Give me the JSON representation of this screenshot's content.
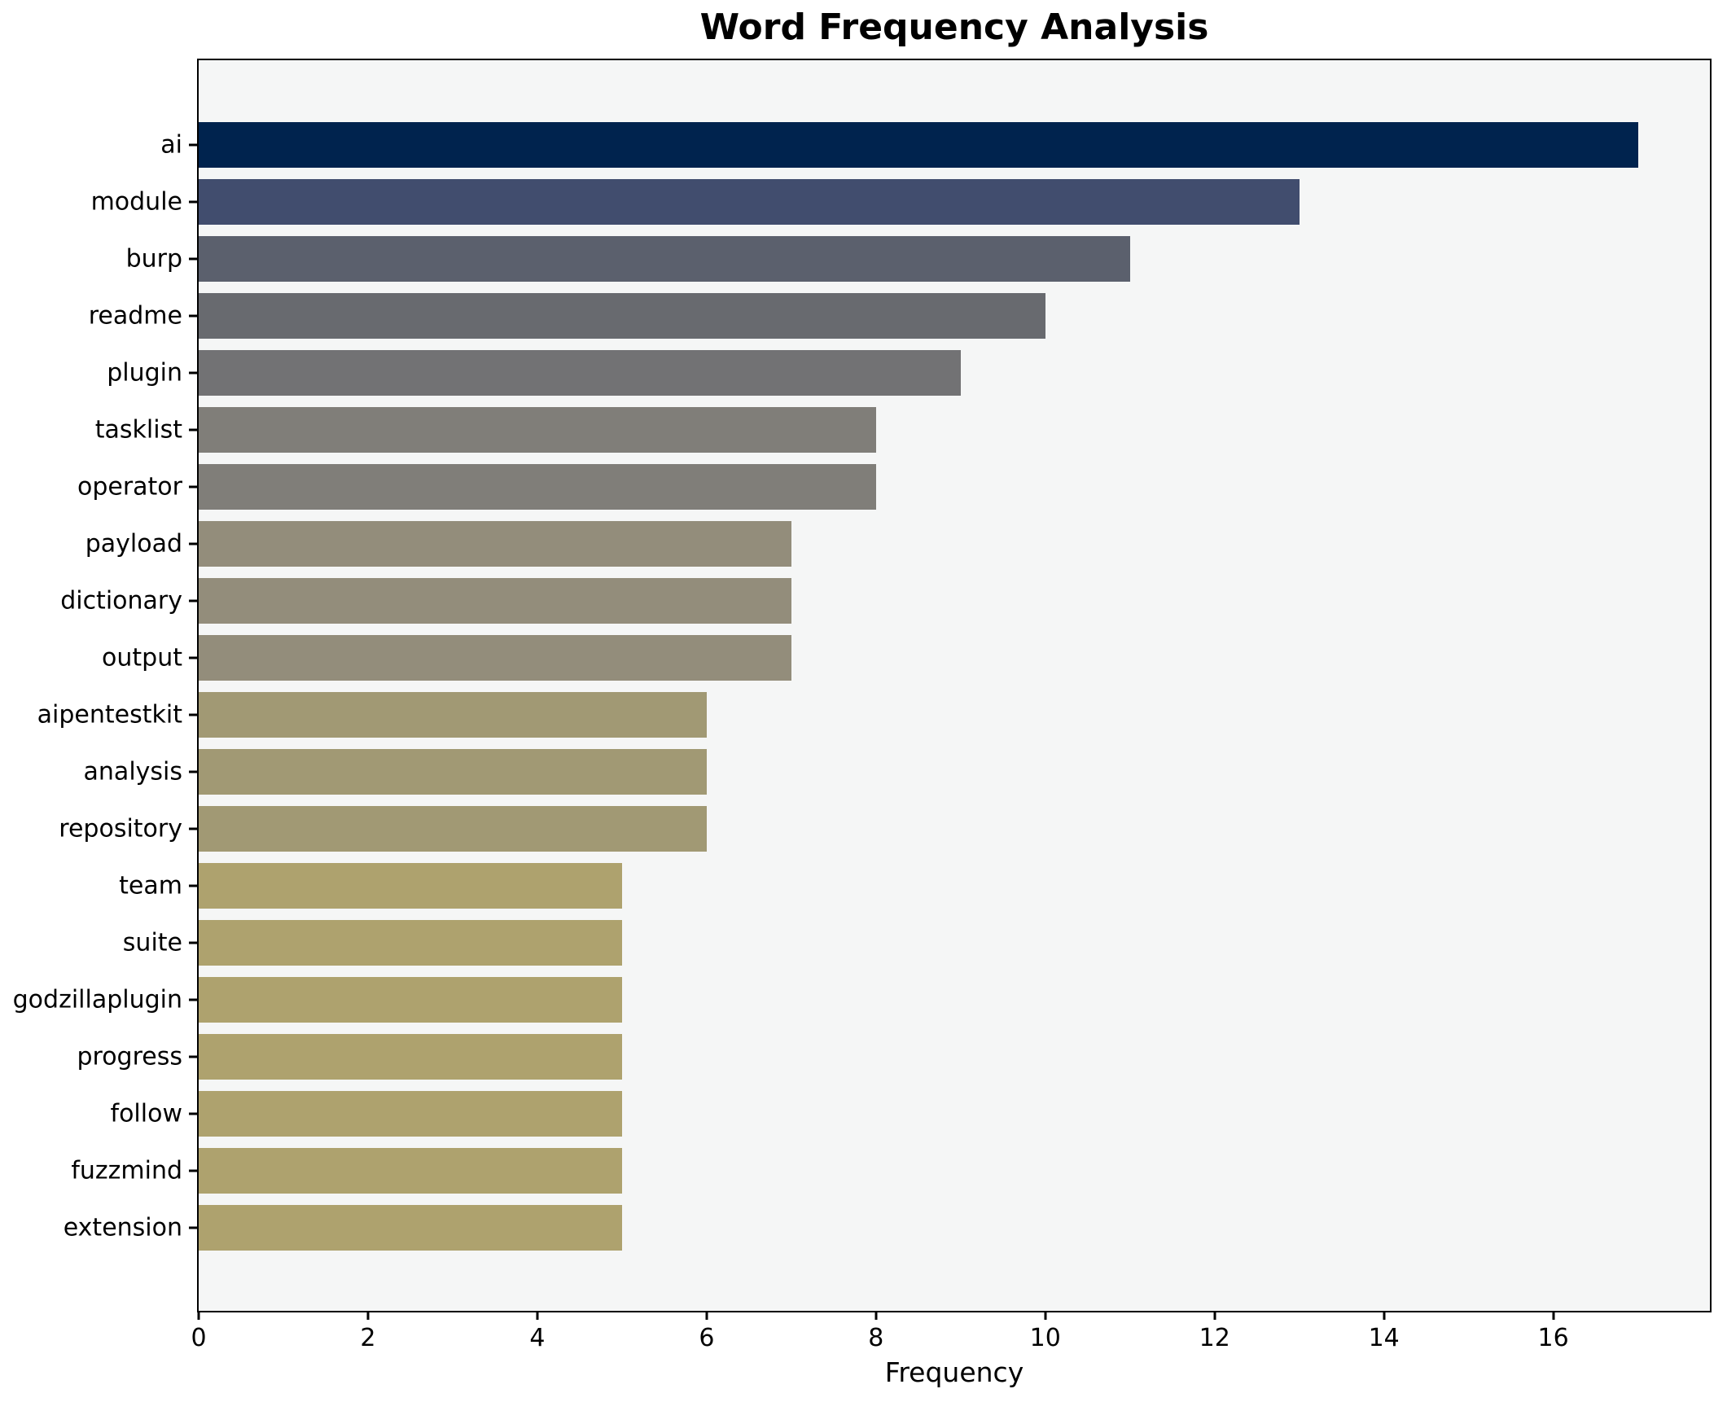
{
  "title": "Word Frequency Analysis",
  "chart_data": {
    "type": "bar",
    "orientation": "horizontal",
    "title": "Word Frequency Analysis",
    "xlabel": "Frequency",
    "ylabel": "",
    "categories": [
      "ai",
      "module",
      "burp",
      "readme",
      "plugin",
      "tasklist",
      "operator",
      "payload",
      "dictionary",
      "output",
      "aipentestkit",
      "analysis",
      "repository",
      "team",
      "suite",
      "godzillaplugin",
      "progress",
      "follow",
      "fuzzmind",
      "extension"
    ],
    "values": [
      17,
      13,
      11,
      10,
      9,
      8,
      8,
      7,
      7,
      7,
      6,
      6,
      6,
      5,
      5,
      5,
      5,
      5,
      5,
      5
    ],
    "bar_colors": [
      "#00234e",
      "#414d6e",
      "#5b606d",
      "#686a6f",
      "#727274",
      "#807e79",
      "#807e79",
      "#938d7b",
      "#938d7b",
      "#938d7b",
      "#a19974",
      "#a19974",
      "#a19974",
      "#aea26e",
      "#aea26e",
      "#aea26e",
      "#aea26e",
      "#aea26e",
      "#aea26e",
      "#aea26e"
    ],
    "xlim": [
      0,
      17.85
    ],
    "xticks": [
      0,
      2,
      4,
      6,
      8,
      10,
      12,
      14,
      16
    ],
    "grid": false,
    "legend": false,
    "plot_bg": "#f5f6f6",
    "figure_bg": "#ffffff",
    "spine_color": "#000000"
  }
}
